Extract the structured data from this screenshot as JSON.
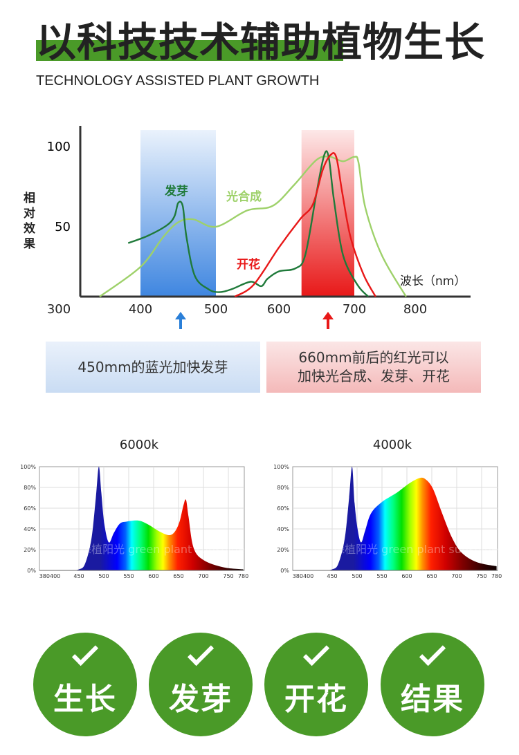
{
  "header": {
    "title": "以科技技术辅助植物生长",
    "subtitle": "TECHNOLOGY ASSISTED PLANT GROWTH",
    "accent": "#4a9a28"
  },
  "chart_data": [
    {
      "type": "line",
      "title": "",
      "ylabel": "相对效果",
      "xlabel": "波长（nm）",
      "x_ticks": [
        "300",
        "400",
        "500",
        "600",
        "700",
        "800"
      ],
      "y_ticks": [
        "100",
        "50"
      ],
      "ylim": [
        0,
        100
      ],
      "xlim": [
        300,
        850
      ],
      "bands": [
        {
          "range": [
            400,
            500
          ],
          "color": "#3f86e0"
        },
        {
          "range": [
            630,
            700
          ],
          "color": "#e82020"
        }
      ],
      "series": [
        {
          "name": "光合成",
          "color": "#9ed16a",
          "points": [
            [
              350,
              0
            ],
            [
              400,
              20
            ],
            [
              430,
              40
            ],
            [
              450,
              50
            ],
            [
              470,
              52
            ],
            [
              500,
              47
            ],
            [
              550,
              58
            ],
            [
              590,
              61
            ],
            [
              620,
              75
            ],
            [
              650,
              92
            ],
            [
              668,
              94
            ],
            [
              685,
              91
            ],
            [
              700,
              94
            ],
            [
              707,
              90
            ],
            [
              718,
              60
            ],
            [
              745,
              28
            ],
            [
              785,
              0
            ]
          ]
        },
        {
          "name": "发芽",
          "color": "#1f7a3a",
          "points": [
            [
              385,
              36
            ],
            [
              410,
              41
            ],
            [
              435,
              48
            ],
            [
              445,
              54
            ],
            [
              450,
              63
            ],
            [
              456,
              61
            ],
            [
              461,
              40
            ],
            [
              472,
              14
            ],
            [
              490,
              5
            ],
            [
              505,
              3
            ],
            [
              525,
              5
            ],
            [
              555,
              10
            ],
            [
              572,
              7
            ],
            [
              582,
              12
            ],
            [
              600,
              17
            ],
            [
              622,
              19
            ],
            [
              635,
              28
            ],
            [
              650,
              70
            ],
            [
              660,
              95
            ],
            [
              666,
              94
            ],
            [
              673,
              65
            ],
            [
              685,
              28
            ],
            [
              705,
              8
            ],
            [
              723,
              0
            ]
          ]
        },
        {
          "name": "开花",
          "color": "#e81818",
          "points": [
            [
              530,
              0
            ],
            [
              560,
              8
            ],
            [
              600,
              33
            ],
            [
              628,
              52
            ],
            [
              645,
              62
            ],
            [
              658,
              85
            ],
            [
              668,
              95
            ],
            [
              676,
              94
            ],
            [
              684,
              70
            ],
            [
              695,
              40
            ],
            [
              715,
              15
            ],
            [
              735,
              0
            ]
          ]
        }
      ]
    },
    {
      "type": "area",
      "title": "6000k",
      "ylim": [
        0,
        100
      ],
      "y_ticks": [
        "100%",
        "80%",
        "60%",
        "40%",
        "20%",
        "0%"
      ],
      "x_ticks": [
        "380400",
        "450",
        "500",
        "550",
        "600",
        "650",
        "700",
        "750",
        "780"
      ],
      "points": [
        [
          435,
          0
        ],
        [
          450,
          1
        ],
        [
          462,
          6
        ],
        [
          475,
          30
        ],
        [
          484,
          70
        ],
        [
          490,
          100
        ],
        [
          495,
          75
        ],
        [
          501,
          45
        ],
        [
          510,
          27
        ],
        [
          520,
          36
        ],
        [
          532,
          45
        ],
        [
          545,
          47
        ],
        [
          570,
          48
        ],
        [
          590,
          44
        ],
        [
          610,
          38
        ],
        [
          630,
          34
        ],
        [
          642,
          37
        ],
        [
          652,
          47
        ],
        [
          660,
          63
        ],
        [
          665,
          68
        ],
        [
          670,
          52
        ],
        [
          680,
          22
        ],
        [
          700,
          10
        ],
        [
          740,
          3
        ],
        [
          780,
          1
        ]
      ]
    },
    {
      "type": "area",
      "title": "4000k",
      "ylim": [
        0,
        100
      ],
      "y_ticks": [
        "100%",
        "80%",
        "60%",
        "40%",
        "20%",
        "0%"
      ],
      "x_ticks": [
        "380400",
        "450",
        "500",
        "550",
        "600",
        "650",
        "700",
        "750",
        "780"
      ],
      "points": [
        [
          435,
          0
        ],
        [
          450,
          1
        ],
        [
          462,
          6
        ],
        [
          475,
          30
        ],
        [
          484,
          70
        ],
        [
          490,
          100
        ],
        [
          495,
          65
        ],
        [
          501,
          40
        ],
        [
          508,
          27
        ],
        [
          516,
          38
        ],
        [
          528,
          55
        ],
        [
          550,
          66
        ],
        [
          580,
          75
        ],
        [
          605,
          84
        ],
        [
          625,
          89
        ],
        [
          637,
          88
        ],
        [
          652,
          79
        ],
        [
          670,
          56
        ],
        [
          690,
          32
        ],
        [
          710,
          17
        ],
        [
          740,
          8
        ],
        [
          780,
          4
        ]
      ]
    }
  ],
  "annotations": {
    "blue_text": "450mm的蓝光加快发芽",
    "red_text_1": "660mm前后的红光可以",
    "red_text_2": "加快光合成、发芽、开花"
  },
  "watermark": "绿植阳光 green plant sunshine",
  "benefits": [
    {
      "label": "生长"
    },
    {
      "label": "发芽"
    },
    {
      "label": "开花"
    },
    {
      "label": "结果"
    }
  ]
}
